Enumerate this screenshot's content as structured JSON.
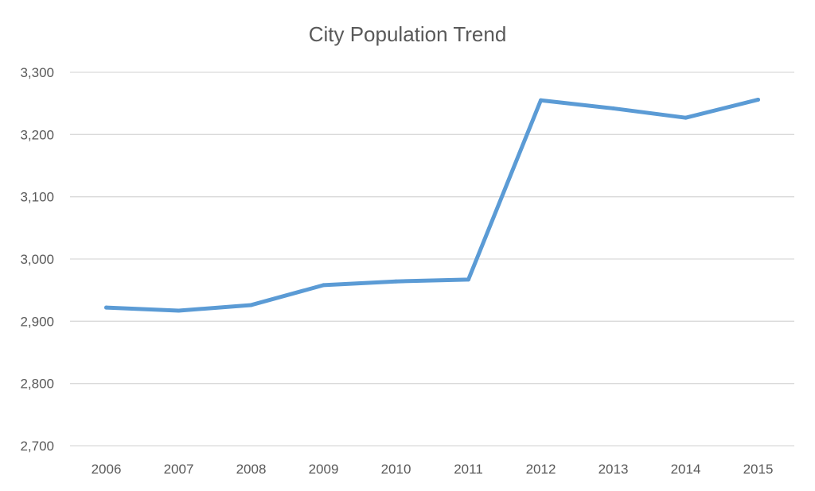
{
  "chart_data": {
    "type": "line",
    "title": "City Population Trend",
    "xlabel": "",
    "ylabel": "",
    "categories": [
      "2006",
      "2007",
      "2008",
      "2009",
      "2010",
      "2011",
      "2012",
      "2013",
      "2014",
      "2015"
    ],
    "series": [
      {
        "values": [
          2922,
          2917,
          2926,
          2958,
          2964,
          2967,
          3255,
          3242,
          3227,
          3256
        ],
        "color": "#5B9BD5"
      }
    ],
    "ylim": [
      2700,
      3300
    ],
    "yticks": [
      2700,
      2800,
      2900,
      3000,
      3100,
      3200,
      3300
    ],
    "ytick_labels": [
      "2,700",
      "2,800",
      "2,900",
      "3,000",
      "3,100",
      "3,200",
      "3,300"
    ],
    "grid": true,
    "gridline_color": "#D9D9D9",
    "legend": "none"
  }
}
